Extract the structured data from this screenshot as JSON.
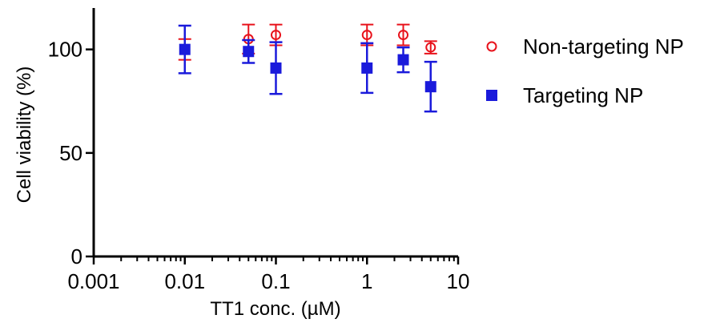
{
  "chart_data": {
    "type": "scatter",
    "xlabel": "TT1 conc. (µM)",
    "ylabel": "Cell viability (%)",
    "xscale": "log",
    "xlim": [
      0.001,
      10
    ],
    "ylim": [
      0,
      120
    ],
    "x_ticks": [
      0.001,
      0.01,
      0.1,
      1,
      10
    ],
    "x_tick_labels": [
      "0.001",
      "0.01",
      "0.1",
      "1",
      "10"
    ],
    "y_ticks": [
      0,
      50,
      100
    ],
    "y_tick_labels": [
      "0",
      "50",
      "100"
    ],
    "legend_position": "right",
    "grid": false,
    "series": [
      {
        "name": "Non-targeting NP",
        "marker": "open-circle",
        "color": "#e8121b",
        "points": [
          {
            "x": 0.01,
            "y": 100,
            "err": 5
          },
          {
            "x": 0.05,
            "y": 105,
            "err": 7
          },
          {
            "x": 0.1,
            "y": 107,
            "err": 5
          },
          {
            "x": 1,
            "y": 107,
            "err": 5
          },
          {
            "x": 2.5,
            "y": 107,
            "err": 5
          },
          {
            "x": 5,
            "y": 101,
            "err": 3
          }
        ]
      },
      {
        "name": "Targeting NP",
        "marker": "filled-square",
        "color": "#1a1adb",
        "points": [
          {
            "x": 0.01,
            "y": 100,
            "err": 11.5
          },
          {
            "x": 0.05,
            "y": 99,
            "err": 5.5
          },
          {
            "x": 0.1,
            "y": 91,
            "err": 12.5
          },
          {
            "x": 1,
            "y": 91,
            "err": 12
          },
          {
            "x": 2.5,
            "y": 95,
            "err": 6
          },
          {
            "x": 5,
            "y": 82,
            "err": 12
          }
        ]
      }
    ]
  }
}
